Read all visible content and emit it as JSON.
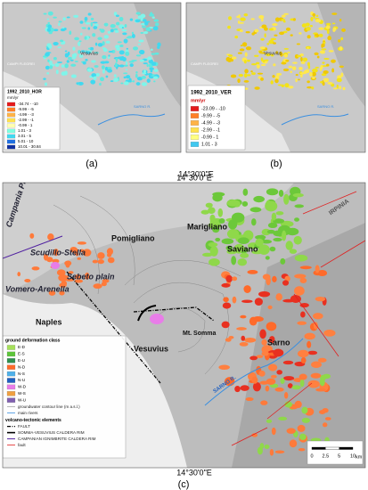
{
  "panel_a": {
    "caption": "(a)",
    "labels": [
      "Vesuvius",
      "CAMPI FLEGREI",
      "SARNO R."
    ],
    "legend": {
      "title": "1992_2010_HOR",
      "unit": "mm/yr",
      "items": [
        {
          "label": "-34.74 - -10",
          "color": "#e41a1c"
        },
        {
          "label": "-9.99 - -5",
          "color": "#ff7f27"
        },
        {
          "label": "-4.99 - -3",
          "color": "#ffb347"
        },
        {
          "label": "-2.99 - -1",
          "color": "#ffe14d"
        },
        {
          "label": "-0.99 - 1",
          "color": "#ffffb0"
        },
        {
          "label": "1.01 - 3",
          "color": "#7fffe0"
        },
        {
          "label": "3.01 - 5",
          "color": "#40d9f0"
        },
        {
          "label": "5.01 - 10",
          "color": "#2070e0"
        },
        {
          "label": "10.01 - 30.84",
          "color": "#1030a0"
        }
      ]
    }
  },
  "panel_b": {
    "caption": "(b)",
    "labels": [
      "Vesuvius",
      "CAMPI FLEGREI",
      "SARNO R."
    ],
    "legend": {
      "title": "1992_2010_VER",
      "unit": "mm/yr",
      "items": [
        {
          "label": "-23.09 - -10",
          "color": "#e41a1c"
        },
        {
          "label": "-9.99 - -5",
          "color": "#ff7f27"
        },
        {
          "label": "-4.99 - -3",
          "color": "#ffb347"
        },
        {
          "label": "-2.99 - -1",
          "color": "#ffe14d"
        },
        {
          "label": "-0.99 - 1",
          "color": "#ffff80"
        },
        {
          "label": "1.01 - 3",
          "color": "#40c8f0"
        }
      ]
    }
  },
  "coordinate_label": "14°30'0\"E",
  "panel_c": {
    "caption": "(c)",
    "coordinate_top": "14°30'0\"E",
    "coordinate_bottom": "14°30'0\"E",
    "places": [
      "Campania Plain",
      "Scudillo-Stella",
      "Pomigliano",
      "Marigliano",
      "Saviano",
      "Sebeto plain",
      "Vomero-Arenella",
      "Naples",
      "Mt. Somma",
      "Vesuvius",
      "Sarno",
      "SARNO R.",
      "IRPINIA"
    ],
    "legend": {
      "class_title": "ground deformation class",
      "classes": [
        {
          "label": "E-D",
          "color": "#a6e05a"
        },
        {
          "label": "E-S",
          "color": "#5cc43a"
        },
        {
          "label": "E-U",
          "color": "#2f8f4f"
        },
        {
          "label": "N-D",
          "color": "#ff6a2a"
        },
        {
          "label": "N-S",
          "color": "#4fb0e8"
        },
        {
          "label": "N-U",
          "color": "#2060c0"
        },
        {
          "label": "W-D",
          "color": "#e87de8"
        },
        {
          "label": "W-S",
          "color": "#f0a040"
        },
        {
          "label": "W-U",
          "color": "#8060b0"
        }
      ],
      "groundwater": "groundwater contour line (m a.s.l.)",
      "rivers": "main rivers",
      "tectonic_title": "volcano-tectonic elements",
      "tectonic": [
        "FAULT",
        "SOMMA-VESUVIUS CALDERA RIM",
        "CAMPANIAN IGNIMBRITE CALDERA RIM",
        "fault"
      ]
    },
    "scale": {
      "ticks": [
        "0",
        "2.5",
        "5",
        "10"
      ],
      "unit": "km"
    }
  }
}
